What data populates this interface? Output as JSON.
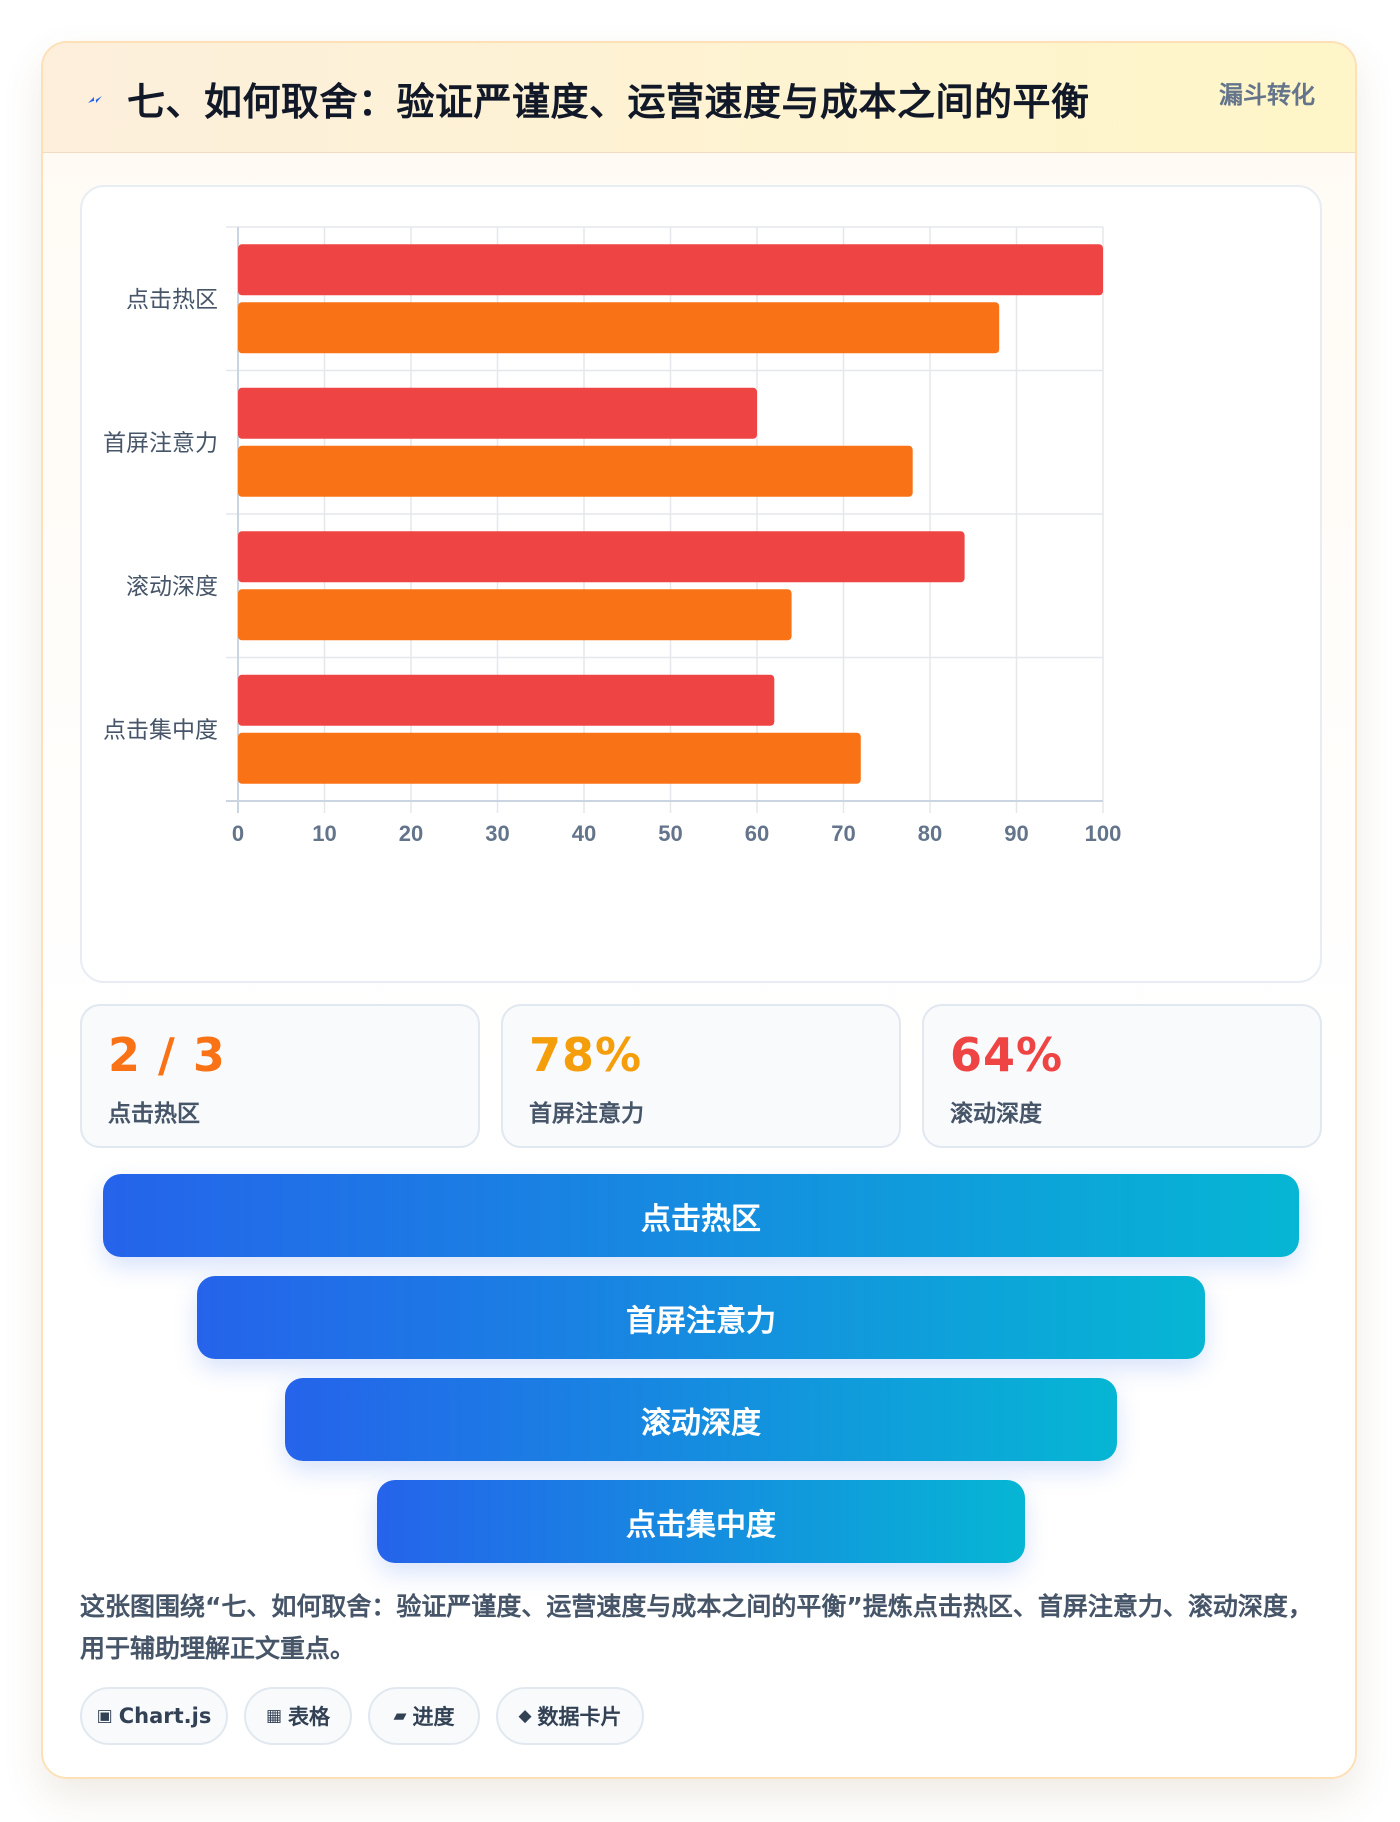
{
  "header": {
    "title": "七、如何取舍：验证严谨度、运营速度与成本之间的平衡",
    "tag": "漏斗转化",
    "icon": "lightning-icon"
  },
  "chart_data": {
    "type": "bar",
    "orientation": "horizontal",
    "categories": [
      "点击热区",
      "首屏注意力",
      "滚动深度",
      "点击集中度"
    ],
    "series": [
      {
        "color": "#ef4444",
        "values": [
          100,
          60,
          84,
          62
        ]
      },
      {
        "color": "#f97316",
        "values": [
          88,
          78,
          64,
          72
        ]
      }
    ],
    "xlim": [
      0,
      100
    ],
    "xticks": [
      "0",
      "10",
      "20",
      "30",
      "40",
      "50",
      "60",
      "70",
      "80",
      "90",
      "100"
    ],
    "grid": true,
    "legend": "none"
  },
  "stats": [
    {
      "value": "2 / 3",
      "label": "点击热区",
      "color": "#f97316"
    },
    {
      "value": "78%",
      "label": "首屏注意力",
      "color": "#f59e0b"
    },
    {
      "value": "64%",
      "label": "滚动深度",
      "color": "#ef4444"
    }
  ],
  "funnel": [
    {
      "label": "点击热区"
    },
    {
      "label": "首屏注意力"
    },
    {
      "label": "滚动深度"
    },
    {
      "label": "点击集中度"
    }
  ],
  "description": "这张图围绕“七、如何取舍：验证严谨度、运营速度与成本之间的平衡”提炼点击热区、首屏注意力、滚动深度，用于辅助理解正文重点。",
  "chips": [
    {
      "icon": "▣",
      "label": "Chart.js"
    },
    {
      "icon": "▦",
      "label": "表格"
    },
    {
      "icon": "▰",
      "label": "进度"
    },
    {
      "icon": "◆",
      "label": "数据卡片"
    }
  ]
}
